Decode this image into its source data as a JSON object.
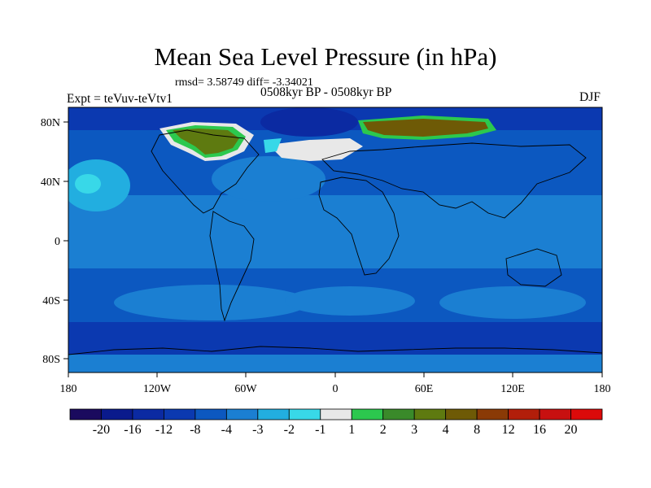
{
  "title": "Mean Sea Level Pressure (in hPa)",
  "stats_line": "rmsd= 3.58749 diff= -3.34021",
  "subtitle": "0508kyr BP - 0508kyr BP",
  "left_label": "Expt = teVuv-teVtv1",
  "right_label": "DJF",
  "lat_ticks": [
    "80N",
    "40N",
    "0",
    "40S",
    "80S"
  ],
  "lon_ticks": [
    "180",
    "120W",
    "60W",
    "0",
    "60E",
    "120E",
    "180"
  ],
  "colorbar": {
    "labels": [
      "-20",
      "-16",
      "-12",
      "-8",
      "-4",
      "-3",
      "-2",
      "-1",
      "1",
      "2",
      "3",
      "4",
      "8",
      "12",
      "16",
      "20"
    ],
    "colors": [
      "#1a0a5e",
      "#0a1a8c",
      "#0b2aa2",
      "#0b39b0",
      "#0c58c0",
      "#1b7fd2",
      "#22aee0",
      "#38d8e8",
      "#e8e8e8",
      "#2cc84e",
      "#3a8a2a",
      "#5e7a10",
      "#6e5a06",
      "#8a3a06",
      "#b21e0a",
      "#c81010",
      "#dc0a0a"
    ]
  }
}
